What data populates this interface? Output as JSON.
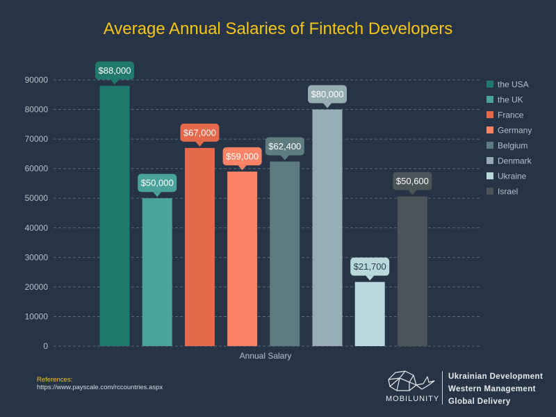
{
  "chart_data": {
    "type": "bar",
    "title": "Average Annual Salaries of Fintech Developers",
    "xlabel": "Annual Salary",
    "ylabel": "",
    "ylim": [
      0,
      90000
    ],
    "yticks": [
      0,
      10000,
      20000,
      30000,
      40000,
      50000,
      60000,
      70000,
      80000,
      90000
    ],
    "grid": true,
    "legend_position": "right",
    "categories": [
      "the USA",
      "the UK",
      "France",
      "Germany",
      "Belgium",
      "Denmark",
      "Ukraine",
      "Israel"
    ],
    "values": [
      88000,
      50000,
      67000,
      59000,
      62400,
      80000,
      21700,
      50600
    ],
    "value_labels": [
      "$88,000",
      "$50,000",
      "$67,000",
      "$59,000",
      "$62,400",
      "$80,000",
      "$21,700",
      "$50,600"
    ],
    "colors": [
      "#1f7a6b",
      "#4aa39a",
      "#e5694b",
      "#fb8466",
      "#5e7b80",
      "#96aeb3",
      "#b9d8dc",
      "#4a5459"
    ]
  },
  "references": {
    "label": "References:",
    "url": "https://www.payscale.com/rccountries.aspx"
  },
  "brand": {
    "name": "MOBILUNITY",
    "taglines": [
      "Ukrainian Development",
      "Western Management",
      "Global Delivery"
    ],
    "logo_icon": "whale-logo-icon"
  }
}
